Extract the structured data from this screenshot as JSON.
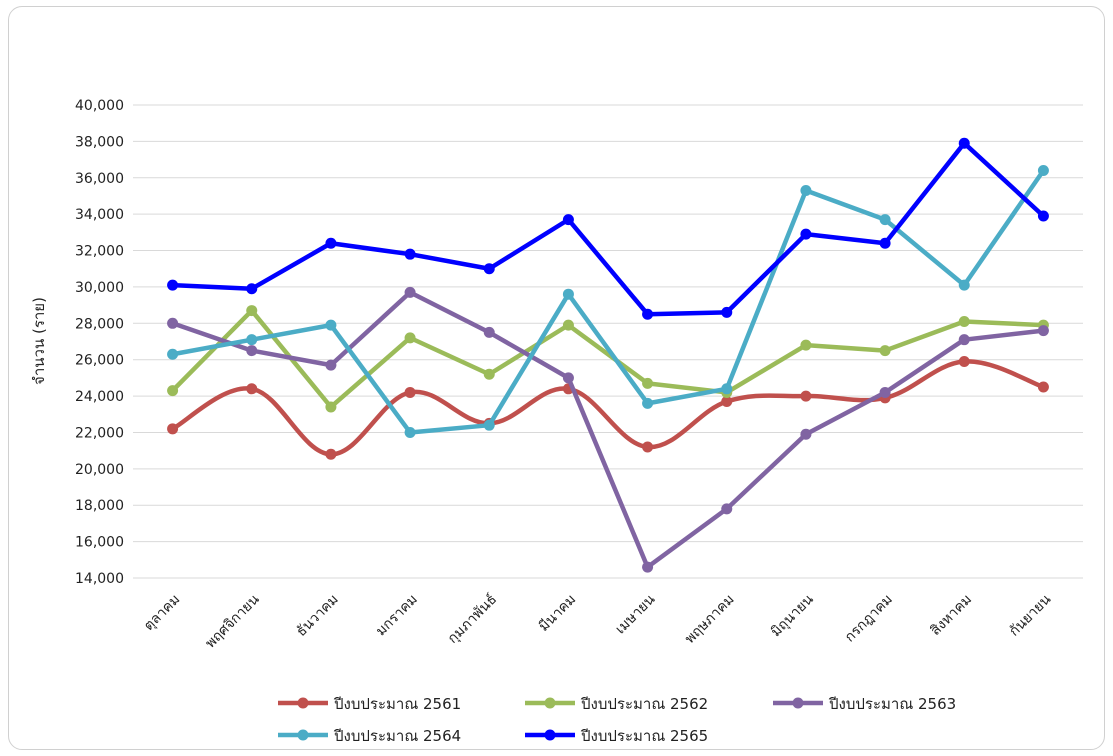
{
  "chart_data": {
    "type": "line",
    "title": "",
    "xlabel": "",
    "ylabel": "จำนวน (ราย)",
    "ylim": [
      14000,
      40000
    ],
    "ytick_step": 2000,
    "ytick_labels": [
      "14,000",
      "16,000",
      "18,000",
      "20,000",
      "22,000",
      "24,000",
      "26,000",
      "28,000",
      "30,000",
      "32,000",
      "34,000",
      "36,000",
      "38,000",
      "40,000"
    ],
    "grid": true,
    "legend_position": "bottom",
    "categories": [
      "ตุลาคม",
      "พฤศจิกายน",
      "ธันวาคม",
      "มกราคม",
      "กุมภาพันธ์",
      "มีนาคม",
      "เมษายน",
      "พฤษภาคม",
      "มิถุนายน",
      "กรกฎาคม",
      "สิงหาคม",
      "กันยายน"
    ],
    "series": [
      {
        "name": "ปีงบประมาณ 2561",
        "color": "#c0504d",
        "smooth": true,
        "values": [
          22200,
          24400,
          20800,
          24200,
          22500,
          24400,
          21200,
          23700,
          24000,
          23900,
          25900,
          24500
        ]
      },
      {
        "name": "ปีงบประมาณ 2562",
        "color": "#9bbb59",
        "smooth": false,
        "values": [
          24300,
          28700,
          23400,
          27200,
          25200,
          27900,
          24700,
          24200,
          26800,
          26500,
          28100,
          27900
        ]
      },
      {
        "name": "ปีงบประมาณ 2563",
        "color": "#8064a2",
        "smooth": false,
        "values": [
          28000,
          26500,
          25700,
          29700,
          27500,
          25000,
          14600,
          17800,
          21900,
          24200,
          27100,
          27600
        ]
      },
      {
        "name": "ปีงบประมาณ 2564",
        "color": "#4bacc6",
        "smooth": false,
        "values": [
          26300,
          27100,
          27900,
          22000,
          22400,
          29600,
          23600,
          24400,
          35300,
          33700,
          30100,
          36400
        ]
      },
      {
        "name": "ปีงบประมาณ 2565",
        "color": "#0000ff",
        "smooth": false,
        "values": [
          30100,
          29900,
          32400,
          31800,
          31000,
          33700,
          28500,
          28600,
          32900,
          32400,
          37900,
          33900
        ]
      }
    ]
  }
}
